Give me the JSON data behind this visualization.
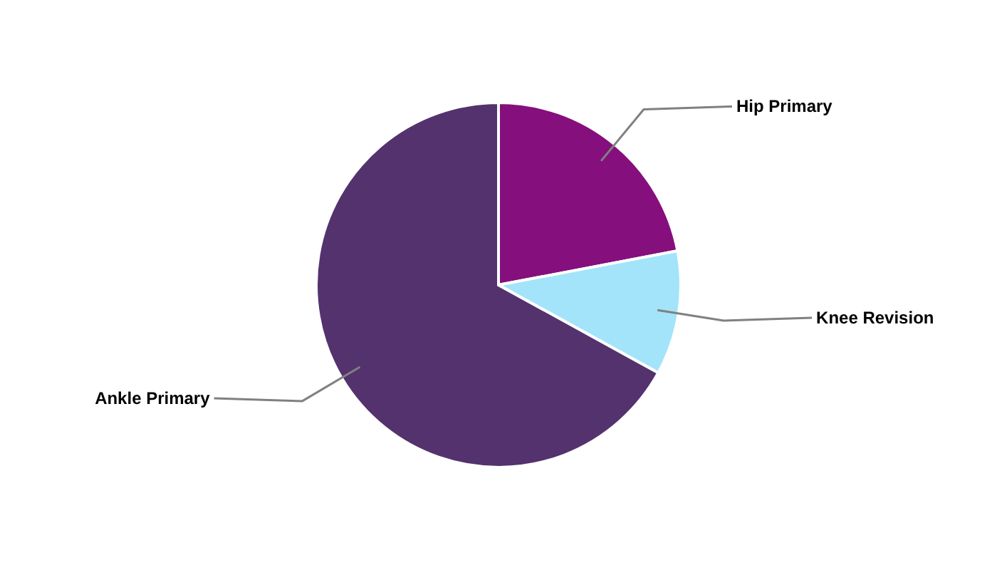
{
  "chart_data": {
    "type": "pie",
    "categories": [
      "Hip Primary",
      "Knee Revision",
      "Ankle Primary"
    ],
    "values": [
      22,
      11,
      67
    ],
    "colors": [
      "#850f7c",
      "#a3e4fb",
      "#53326e"
    ]
  }
}
